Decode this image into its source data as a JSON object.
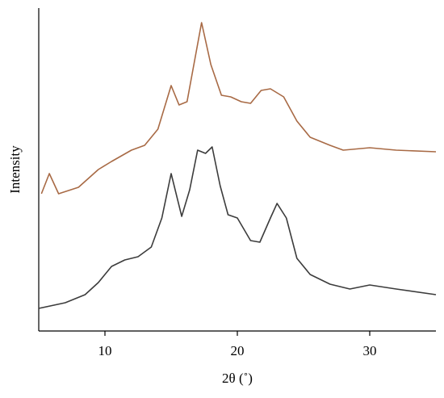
{
  "chart_data": {
    "type": "line",
    "xlabel": "2θ (˚)",
    "ylabel": "Intensity",
    "xlim": [
      5,
      35
    ],
    "xticks": [
      10,
      20,
      30
    ],
    "ylim": [
      0,
      100
    ],
    "series": [
      {
        "color": "#a86a45",
        "x": [
          5.2,
          5.8,
          6.5,
          8,
          9.5,
          10.5,
          12,
          13,
          14,
          15,
          15.6,
          16.2,
          17.3,
          18,
          18.8,
          19.5,
          20.3,
          21,
          21.8,
          22.5,
          23.5,
          24.5,
          25.5,
          27,
          28,
          30,
          32,
          35
        ],
        "values": [
          42.5,
          48.75,
          42.5,
          44.5,
          50,
          52.5,
          56,
          57.5,
          62.5,
          76,
          70,
          71,
          95.5,
          82.5,
          73,
          72.5,
          71,
          70.5,
          74.5,
          75,
          72.5,
          65,
          60,
          57.5,
          56,
          56.75,
          56,
          55.5
        ]
      },
      {
        "color": "#3c3c3c",
        "x": [
          5,
          7,
          8.5,
          9.5,
          10.5,
          11.5,
          12.5,
          13.5,
          14.3,
          15,
          15.8,
          16.4,
          17,
          17.6,
          18.1,
          18.7,
          19.3,
          20,
          21,
          21.7,
          22.5,
          23,
          23.7,
          24.5,
          25.5,
          27,
          28.5,
          30,
          32,
          35
        ],
        "values": [
          7,
          8.75,
          11.25,
          15,
          20,
          22,
          23,
          26,
          35,
          48.75,
          35.5,
          43.75,
          56,
          55,
          57,
          45,
          36,
          35,
          28,
          27.5,
          35,
          39.5,
          35,
          22.5,
          17.5,
          14.5,
          13,
          14.25,
          13,
          11.25
        ]
      }
    ]
  }
}
